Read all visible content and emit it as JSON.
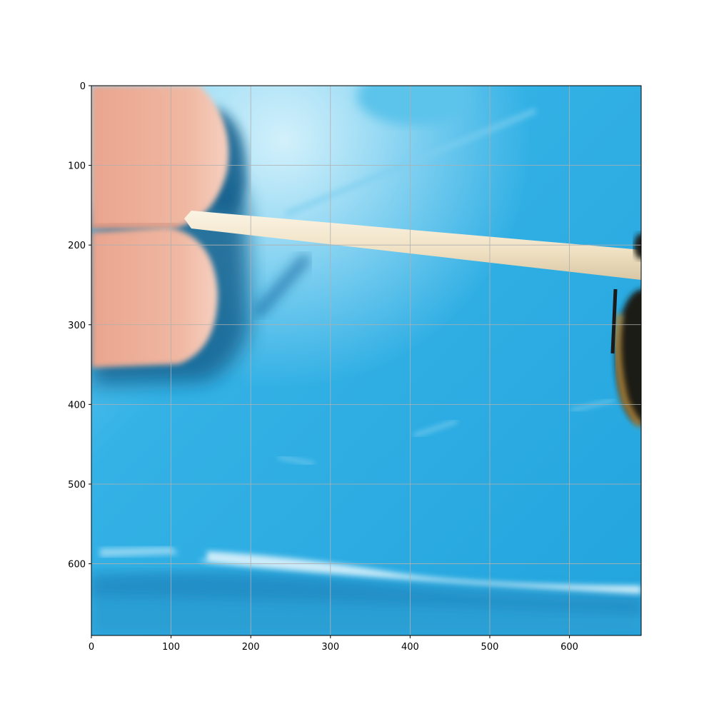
{
  "chart_data": {
    "type": "image",
    "title": "",
    "xlabel": "",
    "ylabel": "",
    "xlim": [
      0,
      690
    ],
    "ylim": [
      690,
      0
    ],
    "grid": true,
    "x_ticks": [
      0,
      100,
      200,
      300,
      400,
      500,
      600
    ],
    "y_ticks": [
      0,
      100,
      200,
      300,
      400,
      500,
      600
    ],
    "x_tick_labels": [
      "0",
      "100",
      "200",
      "300",
      "400",
      "500",
      "600"
    ],
    "y_tick_labels": [
      "0",
      "100",
      "200",
      "300",
      "400",
      "500",
      "600"
    ]
  },
  "colors": {
    "background_blue": "#2aa9e0",
    "light_blue": "#8fd8f4",
    "deep_blue": "#1b78b5",
    "shadow_blue": "#14628f",
    "finger_skin": "#e8a890",
    "toothpick": "#f3e7cf",
    "bee_dark": "#1c1a18",
    "bee_fur": "#b88a3a",
    "grid": "#b0b0b0"
  },
  "icons": [
    "finger",
    "toothpick",
    "bee"
  ]
}
